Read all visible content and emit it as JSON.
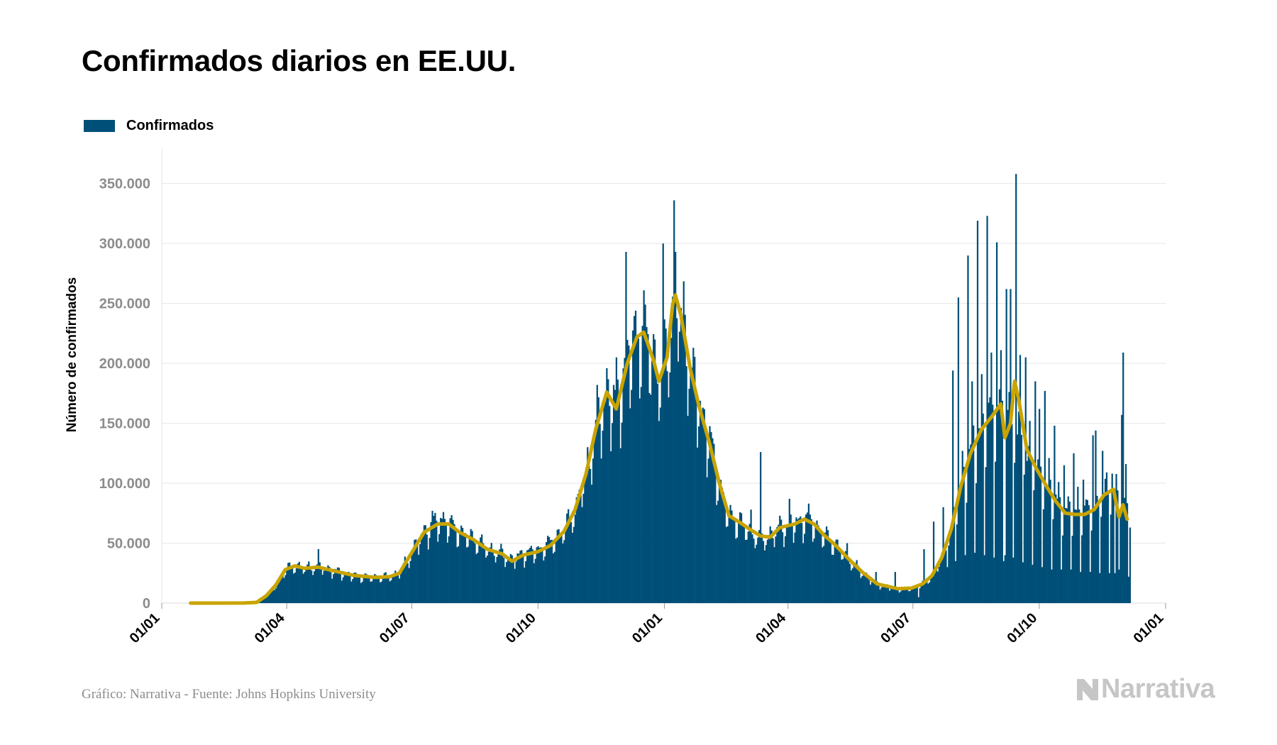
{
  "title": "Confirmados diarios en EE.UU.",
  "legend": {
    "label": "Confirmados",
    "color": "#004f78"
  },
  "footer": {
    "source": "Gráfico: Narrativa - Fuente: Johns Hopkins University",
    "brand": "Narrativa",
    "brand_icon": "narrativa-n-logo-icon"
  },
  "colors": {
    "bars": "#004f78",
    "average_line": "#c9a400",
    "grid": "#e6e6e6",
    "tick_text": "#8c8c8c",
    "axis_text": "#000000",
    "brand": "#c6c6c6"
  },
  "chart_data": {
    "type": "bar",
    "ylabel": "Número de confirmados",
    "xlabel": "",
    "ylim": [
      0,
      380000
    ],
    "x_ticks": [
      "01/01",
      "01/04",
      "01/07",
      "01/10",
      "01/01",
      "01/04",
      "01/07",
      "01/10",
      "01/01"
    ],
    "y_ticks": [
      "0",
      "50.000",
      "100.000",
      "150.000",
      "200.000",
      "250.000",
      "300.000",
      "350.000"
    ],
    "y_tick_values": [
      0,
      50000,
      100000,
      150000,
      200000,
      250000,
      300000,
      350000
    ],
    "grid": true,
    "legend_position": "top-left",
    "x_start": "2020-01-01",
    "x_end": "2022-01-01",
    "data_start": "2020-01-22",
    "data_end": "2021-12-06",
    "series": [
      {
        "name": "Confirmados",
        "kind": "bar",
        "baseline_keypoints": [
          [
            "2020-01-22",
            0
          ],
          [
            "2020-03-01",
            50
          ],
          [
            "2020-03-10",
            600
          ],
          [
            "2020-03-17",
            6000
          ],
          [
            "2020-03-24",
            15000
          ],
          [
            "2020-03-31",
            28000
          ],
          [
            "2020-04-07",
            31000
          ],
          [
            "2020-04-14",
            29000
          ],
          [
            "2020-04-24",
            31000
          ],
          [
            "2020-05-05",
            27000
          ],
          [
            "2020-05-20",
            23000
          ],
          [
            "2020-06-05",
            21500
          ],
          [
            "2020-06-15",
            22000
          ],
          [
            "2020-06-22",
            25000
          ],
          [
            "2020-07-01",
            42000
          ],
          [
            "2020-07-10",
            59000
          ],
          [
            "2020-07-20",
            68000
          ],
          [
            "2020-07-28",
            66000
          ],
          [
            "2020-08-05",
            59000
          ],
          [
            "2020-08-15",
            53000
          ],
          [
            "2020-08-25",
            45000
          ],
          [
            "2020-09-05",
            41000
          ],
          [
            "2020-09-12",
            36000
          ],
          [
            "2020-09-20",
            41000
          ],
          [
            "2020-10-01",
            44000
          ],
          [
            "2020-10-10",
            50000
          ],
          [
            "2020-10-20",
            61000
          ],
          [
            "2020-10-28",
            78000
          ],
          [
            "2020-11-05",
            108000
          ],
          [
            "2020-11-12",
            145000
          ],
          [
            "2020-11-20",
            172000
          ],
          [
            "2020-11-27",
            164000
          ],
          [
            "2020-12-05",
            202000
          ],
          [
            "2020-12-12",
            220000
          ],
          [
            "2020-12-17",
            227000
          ],
          [
            "2020-12-24",
            204000
          ],
          [
            "2020-12-28",
            185000
          ],
          [
            "2021-01-03",
            205000
          ],
          [
            "2021-01-08",
            255000
          ],
          [
            "2021-01-14",
            240000
          ],
          [
            "2021-01-20",
            195000
          ],
          [
            "2021-01-26",
            165000
          ],
          [
            "2021-02-03",
            135000
          ],
          [
            "2021-02-10",
            100000
          ],
          [
            "2021-02-17",
            72000
          ],
          [
            "2021-02-24",
            68000
          ],
          [
            "2021-03-05",
            59000
          ],
          [
            "2021-03-12",
            54000
          ],
          [
            "2021-03-19",
            56000
          ],
          [
            "2021-03-26",
            63000
          ],
          [
            "2021-04-06",
            66000
          ],
          [
            "2021-04-13",
            69000
          ],
          [
            "2021-04-20",
            66000
          ],
          [
            "2021-04-27",
            57000
          ],
          [
            "2021-05-05",
            49000
          ],
          [
            "2021-05-15",
            37000
          ],
          [
            "2021-05-25",
            25000
          ],
          [
            "2021-06-05",
            16000
          ],
          [
            "2021-06-20",
            12000
          ],
          [
            "2021-06-30",
            12500
          ],
          [
            "2021-07-08",
            16000
          ],
          [
            "2021-07-15",
            23000
          ],
          [
            "2021-07-22",
            38000
          ],
          [
            "2021-07-29",
            62000
          ],
          [
            "2021-08-05",
            98000
          ],
          [
            "2021-08-12",
            125000
          ],
          [
            "2021-08-20",
            145000
          ],
          [
            "2021-08-27",
            155000
          ],
          [
            "2021-09-03",
            162000
          ],
          [
            "2021-09-10",
            155000
          ],
          [
            "2021-09-15",
            142000
          ],
          [
            "2021-09-22",
            125000
          ],
          [
            "2021-09-29",
            112000
          ],
          [
            "2021-10-06",
            98000
          ],
          [
            "2021-10-13",
            86000
          ],
          [
            "2021-10-20",
            75000
          ],
          [
            "2021-10-27",
            74000
          ],
          [
            "2021-11-03",
            75000
          ],
          [
            "2021-11-10",
            80000
          ],
          [
            "2021-11-17",
            90000
          ],
          [
            "2021-11-24",
            94000
          ],
          [
            "2021-11-30",
            85000
          ],
          [
            "2021-12-06",
            80000
          ]
        ],
        "spikes": [
          [
            "2020-04-24",
            45000
          ],
          [
            "2020-07-16",
            77000
          ],
          [
            "2020-07-24",
            76000
          ],
          [
            "2020-10-30",
            91000
          ],
          [
            "2020-11-13",
            182000
          ],
          [
            "2020-11-20",
            196000
          ],
          [
            "2020-11-27",
            205000
          ],
          [
            "2020-12-04",
            293000
          ],
          [
            "2020-12-11",
            244000
          ],
          [
            "2020-12-18",
            249000
          ],
          [
            "2020-12-31",
            300000
          ],
          [
            "2021-01-02",
            229000
          ],
          [
            "2021-01-08",
            336000
          ],
          [
            "2021-01-09",
            293000
          ],
          [
            "2021-01-14",
            232000
          ],
          [
            "2021-01-22",
            213000
          ],
          [
            "2021-03-05",
            78000
          ],
          [
            "2021-03-12",
            126000
          ],
          [
            "2021-04-02",
            87000
          ],
          [
            "2021-04-16",
            83000
          ],
          [
            "2021-05-14",
            50000
          ],
          [
            "2021-06-04",
            26000
          ],
          [
            "2021-06-18",
            26000
          ],
          [
            "2021-07-09",
            45000
          ],
          [
            "2021-07-16",
            68000
          ],
          [
            "2021-07-23",
            80000
          ],
          [
            "2021-07-30",
            194000
          ],
          [
            "2021-08-03",
            255000
          ],
          [
            "2021-08-06",
            127000
          ],
          [
            "2021-08-10",
            290000
          ],
          [
            "2021-08-13",
            185000
          ],
          [
            "2021-08-17",
            319000
          ],
          [
            "2021-08-20",
            191000
          ],
          [
            "2021-08-24",
            323000
          ],
          [
            "2021-08-27",
            209000
          ],
          [
            "2021-08-31",
            301000
          ],
          [
            "2021-09-03",
            211000
          ],
          [
            "2021-09-07",
            262000
          ],
          [
            "2021-09-10",
            262000
          ],
          [
            "2021-09-14",
            358000
          ],
          [
            "2021-09-17",
            207000
          ],
          [
            "2021-09-21",
            205000
          ],
          [
            "2021-09-24",
            152000
          ],
          [
            "2021-09-28",
            185000
          ],
          [
            "2021-10-01",
            162000
          ],
          [
            "2021-10-05",
            177000
          ],
          [
            "2021-10-08",
            121000
          ],
          [
            "2021-10-12",
            148000
          ],
          [
            "2021-10-15",
            101000
          ],
          [
            "2021-10-19",
            115000
          ],
          [
            "2021-10-22",
            89000
          ],
          [
            "2021-10-26",
            125000
          ],
          [
            "2021-10-29",
            97000
          ],
          [
            "2021-11-02",
            103000
          ],
          [
            "2021-11-05",
            86000
          ],
          [
            "2021-11-09",
            140000
          ],
          [
            "2021-11-11",
            144000
          ],
          [
            "2021-11-16",
            127000
          ],
          [
            "2021-11-19",
            109000
          ],
          [
            "2021-11-23",
            108000
          ],
          [
            "2021-11-30",
            157000
          ],
          [
            "2021-12-01",
            209000
          ],
          [
            "2021-12-03",
            116000
          ]
        ],
        "dips": [
          [
            "2021-07-05",
            5000
          ],
          [
            "2021-07-26",
            30000
          ],
          [
            "2021-08-01",
            35000
          ],
          [
            "2021-08-08",
            40000
          ],
          [
            "2021-08-15",
            42000
          ],
          [
            "2021-08-22",
            40000
          ],
          [
            "2021-08-29",
            38000
          ],
          [
            "2021-09-05",
            35000
          ],
          [
            "2021-09-06",
            40000
          ],
          [
            "2021-09-12",
            38000
          ],
          [
            "2021-09-19",
            34000
          ],
          [
            "2021-09-26",
            32000
          ],
          [
            "2021-10-03",
            30000
          ],
          [
            "2021-10-10",
            28000
          ],
          [
            "2021-10-17",
            28000
          ],
          [
            "2021-10-24",
            28000
          ],
          [
            "2021-10-31",
            26000
          ],
          [
            "2021-11-07",
            26000
          ],
          [
            "2021-11-14",
            25000
          ],
          [
            "2021-11-21",
            25000
          ],
          [
            "2021-11-25",
            25000
          ],
          [
            "2021-11-28",
            28000
          ],
          [
            "2021-12-05",
            22000
          ]
        ]
      },
      {
        "name": "",
        "kind": "line",
        "description": "7-day moving average",
        "points": [
          [
            "2020-01-22",
            0
          ],
          [
            "2020-03-01",
            50
          ],
          [
            "2020-03-10",
            600
          ],
          [
            "2020-03-17",
            6000
          ],
          [
            "2020-03-24",
            15000
          ],
          [
            "2020-03-31",
            28000
          ],
          [
            "2020-04-07",
            31000
          ],
          [
            "2020-04-14",
            29000
          ],
          [
            "2020-04-24",
            30000
          ],
          [
            "2020-05-05",
            27000
          ],
          [
            "2020-05-20",
            23000
          ],
          [
            "2020-06-05",
            21500
          ],
          [
            "2020-06-15",
            22000
          ],
          [
            "2020-06-22",
            25000
          ],
          [
            "2020-07-01",
            42000
          ],
          [
            "2020-07-10",
            59000
          ],
          [
            "2020-07-20",
            66000
          ],
          [
            "2020-07-28",
            66000
          ],
          [
            "2020-08-05",
            59000
          ],
          [
            "2020-08-15",
            53000
          ],
          [
            "2020-08-25",
            45000
          ],
          [
            "2020-09-05",
            41000
          ],
          [
            "2020-09-12",
            35000
          ],
          [
            "2020-09-20",
            40000
          ],
          [
            "2020-10-01",
            43000
          ],
          [
            "2020-10-10",
            48000
          ],
          [
            "2020-10-20",
            60000
          ],
          [
            "2020-10-28",
            78000
          ],
          [
            "2020-11-05",
            108000
          ],
          [
            "2020-11-12",
            145000
          ],
          [
            "2020-11-20",
            176000
          ],
          [
            "2020-11-27",
            162000
          ],
          [
            "2020-12-05",
            200000
          ],
          [
            "2020-12-12",
            222000
          ],
          [
            "2020-12-17",
            226000
          ],
          [
            "2020-12-24",
            203000
          ],
          [
            "2020-12-28",
            185000
          ],
          [
            "2021-01-03",
            205000
          ],
          [
            "2021-01-07",
            249000
          ],
          [
            "2021-01-09",
            257000
          ],
          [
            "2021-01-13",
            240000
          ],
          [
            "2021-01-20",
            195000
          ],
          [
            "2021-01-26",
            165000
          ],
          [
            "2021-02-03",
            133000
          ],
          [
            "2021-02-10",
            100000
          ],
          [
            "2021-02-17",
            73000
          ],
          [
            "2021-02-24",
            68000
          ],
          [
            "2021-03-05",
            61000
          ],
          [
            "2021-03-12",
            56000
          ],
          [
            "2021-03-19",
            55000
          ],
          [
            "2021-03-26",
            63000
          ],
          [
            "2021-04-06",
            66000
          ],
          [
            "2021-04-13",
            70000
          ],
          [
            "2021-04-20",
            66000
          ],
          [
            "2021-04-27",
            57000
          ],
          [
            "2021-05-05",
            49000
          ],
          [
            "2021-05-15",
            37000
          ],
          [
            "2021-05-25",
            26000
          ],
          [
            "2021-06-05",
            16000
          ],
          [
            "2021-06-20",
            12000
          ],
          [
            "2021-06-30",
            12500
          ],
          [
            "2021-07-08",
            16000
          ],
          [
            "2021-07-15",
            23000
          ],
          [
            "2021-07-22",
            38000
          ],
          [
            "2021-07-29",
            62000
          ],
          [
            "2021-08-05",
            98000
          ],
          [
            "2021-08-12",
            125000
          ],
          [
            "2021-08-20",
            145000
          ],
          [
            "2021-08-27",
            155000
          ],
          [
            "2021-09-03",
            166000
          ],
          [
            "2021-09-06",
            138000
          ],
          [
            "2021-09-10",
            150000
          ],
          [
            "2021-09-13",
            185000
          ],
          [
            "2021-09-16",
            170000
          ],
          [
            "2021-09-22",
            128000
          ],
          [
            "2021-09-29",
            112000
          ],
          [
            "2021-10-06",
            98000
          ],
          [
            "2021-10-13",
            85000
          ],
          [
            "2021-10-20",
            75000
          ],
          [
            "2021-10-27",
            74000
          ],
          [
            "2021-11-03",
            74000
          ],
          [
            "2021-11-10",
            78000
          ],
          [
            "2021-11-17",
            90000
          ],
          [
            "2021-11-24",
            95000
          ],
          [
            "2021-11-28",
            72000
          ],
          [
            "2021-12-01",
            82000
          ],
          [
            "2021-12-04",
            70000
          ]
        ]
      }
    ]
  }
}
